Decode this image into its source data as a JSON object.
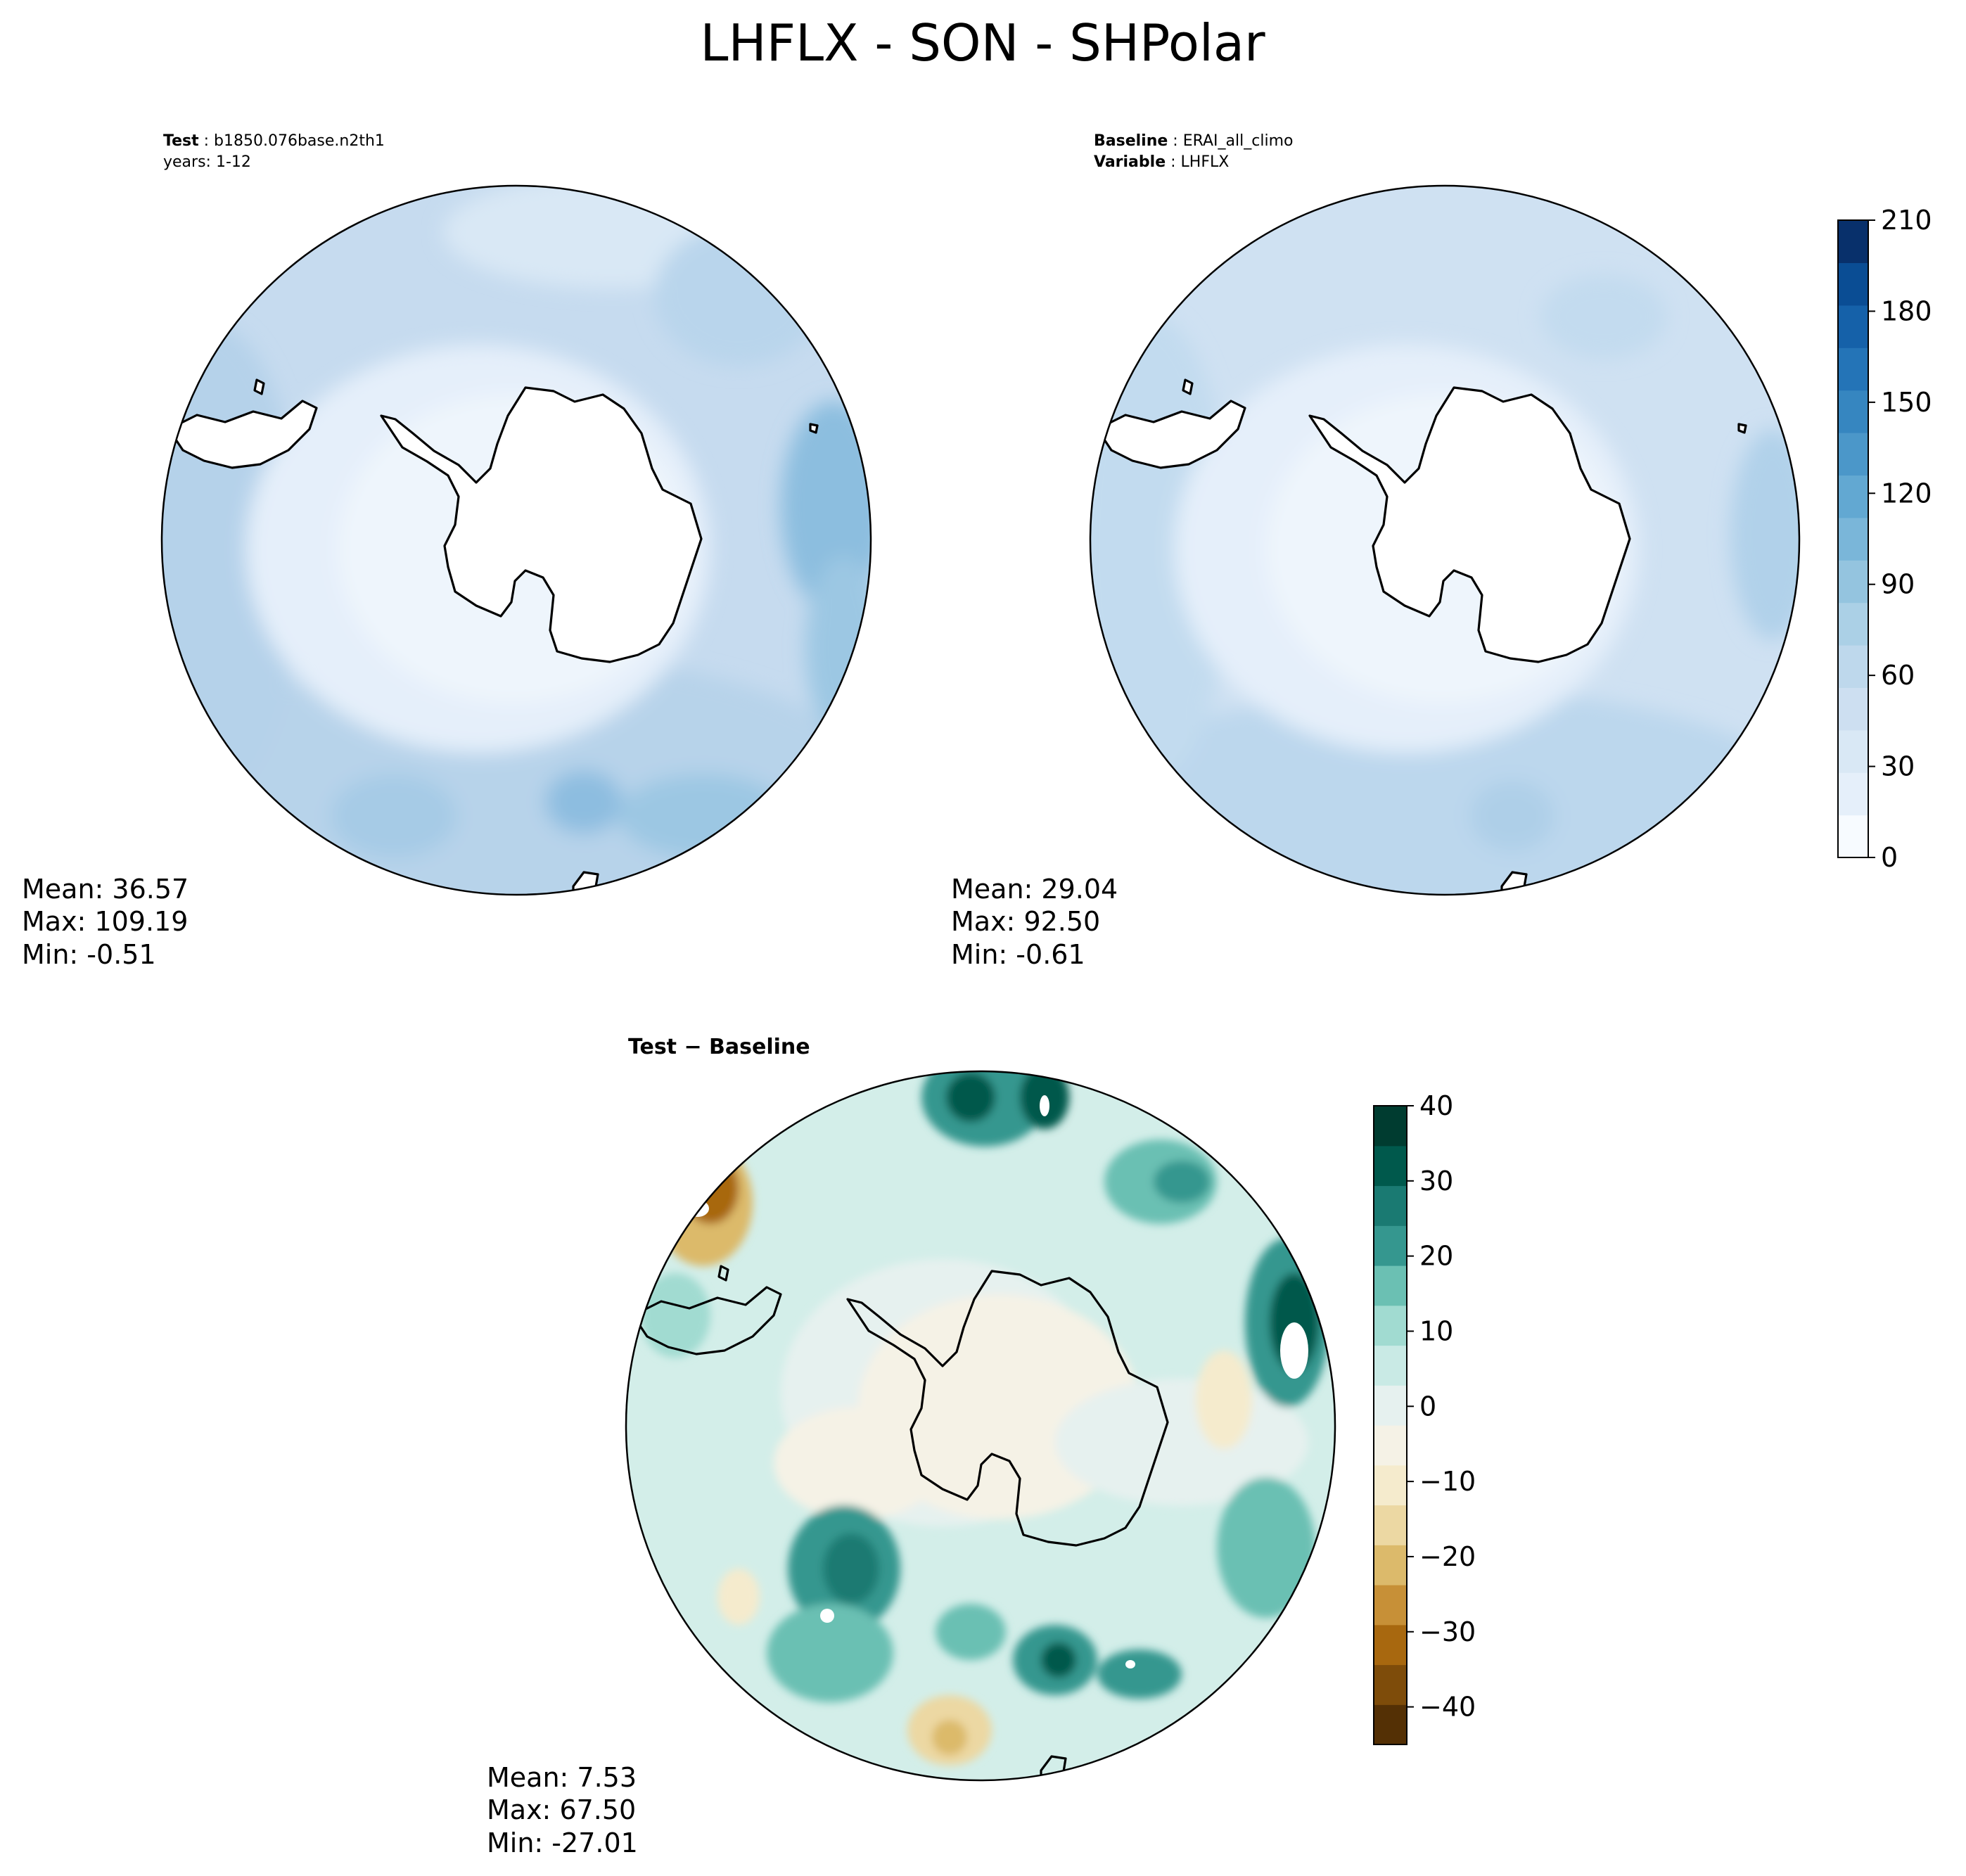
{
  "title": "LHFLX - SON - SHPolar",
  "panels": {
    "test": {
      "header_bold_1": "Test",
      "header_value_1": "b1850.076base.n2th1",
      "header_line_2": "years: 1-12",
      "stats": {
        "mean": "Mean: 36.57",
        "max": "Max: 109.19",
        "min": "Min: -0.51"
      }
    },
    "baseline": {
      "header_bold_1": "Baseline",
      "header_value_1": "ERAI_all_climo",
      "header_bold_2": "Variable",
      "header_value_2": "LHFLX",
      "stats": {
        "mean": "Mean: 29.04",
        "max": "Max: 92.50",
        "min": "Min: -0.61"
      }
    },
    "diff": {
      "title": "Test − Baseline",
      "stats": {
        "mean": "Mean:  7.53",
        "max": "Max: 67.50",
        "min": "Min: -27.01"
      }
    }
  },
  "colors": {
    "blues": [
      "#f7fbff",
      "#e5effa",
      "#d9e8f5",
      "#cddff1",
      "#bed8ec",
      "#abd0e6",
      "#94c4df",
      "#7ab6d9",
      "#62a8d2",
      "#4b97c9",
      "#3686c0",
      "#2474b7",
      "#1561a9",
      "#0a4d94",
      "#08306b"
    ],
    "brbg": [
      "#543005",
      "#7e4c0a",
      "#a8680f",
      "#c79037",
      "#dcba6b",
      "#ecd8a3",
      "#f5ebcd",
      "#f5f2e6",
      "#e6f1ef",
      "#c9eae5",
      "#a1dbd1",
      "#6bc0b3",
      "#35978f",
      "#1a7a72",
      "#00594c",
      "#003c30"
    ],
    "land": "#ffffff",
    "coast": "#000000"
  },
  "chart_data": [
    {
      "type": "heatmap",
      "name": "test",
      "projection": "south-polar-stereographic",
      "stats": {
        "mean": 36.57,
        "max": 109.19,
        "min": -0.51
      },
      "colorscale": "Blues",
      "levels": [
        0,
        210
      ]
    },
    {
      "type": "heatmap",
      "name": "baseline",
      "projection": "south-polar-stereographic",
      "stats": {
        "mean": 29.04,
        "max": 92.5,
        "min": -0.61
      },
      "colorscale": "Blues",
      "colorbar": {
        "ticks": [
          0,
          30,
          60,
          90,
          120,
          150,
          180,
          210
        ],
        "tick_labels": [
          "0",
          "30",
          "60",
          "90",
          "120",
          "150",
          "180",
          "210"
        ],
        "range": [
          0,
          210
        ]
      }
    },
    {
      "type": "heatmap",
      "name": "difference",
      "projection": "south-polar-stereographic",
      "stats": {
        "mean": 7.53,
        "max": 67.5,
        "min": -27.01
      },
      "colorscale": "BrBG",
      "colorbar": {
        "ticks": [
          40,
          30,
          20,
          10,
          0,
          -10,
          -20,
          -30,
          -40
        ],
        "tick_labels": [
          "40",
          "30",
          "20",
          "10",
          "0",
          "−10",
          "−20",
          "−30",
          "−40"
        ],
        "range": [
          -45,
          40
        ]
      }
    }
  ]
}
